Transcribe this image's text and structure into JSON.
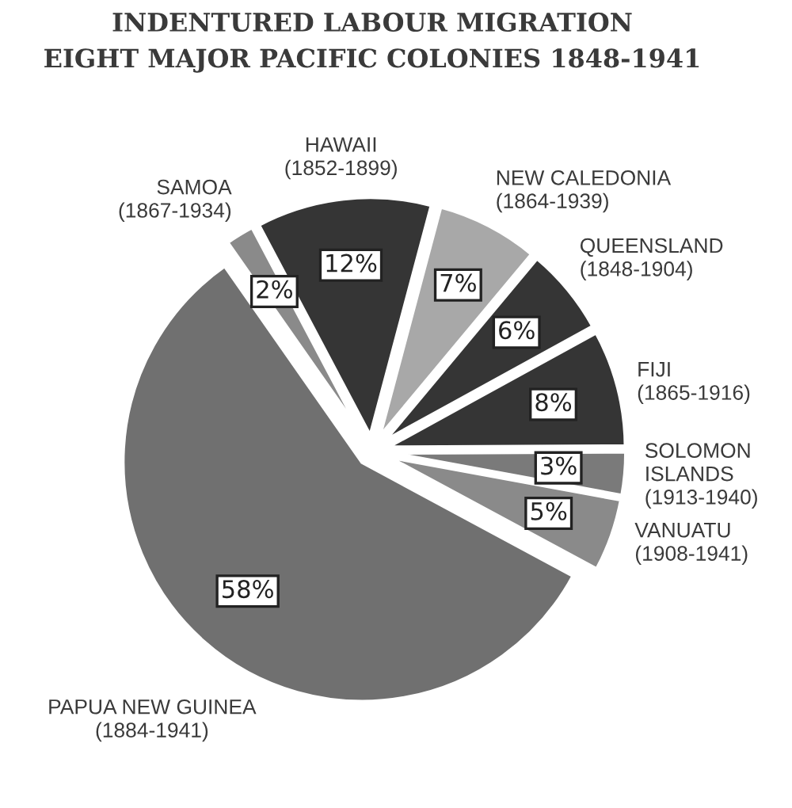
{
  "chart_data": {
    "type": "pie",
    "title": "INDENTURED LABOUR MIGRATION\nEIGHT MAJOR PACIFIC COLONIES 1848-1941",
    "categories": [
      "SAMOA\n(1867-1934)",
      "HAWAII\n(1852-1899)",
      "NEW CALEDONIA\n(1864-1939)",
      "QUEENSLAND\n(1848-1904)",
      "FIJI\n(1865-1916)",
      "SOLOMON\nISLANDS\n(1913-1940)",
      "VANUATU\n(1908-1941)",
      "PAPUA NEW GUINEA\n(1884-1941)"
    ],
    "values": [
      2,
      12,
      7,
      6,
      8,
      3,
      5,
      58
    ],
    "value_labels": [
      "2%",
      "12%",
      "7%",
      "6%",
      "8%",
      "3%",
      "5%",
      "58%"
    ],
    "colors": [
      "#8a8a8a",
      "#353535",
      "#a8a8a8",
      "#353535",
      "#353535",
      "#7a7a7a",
      "#8a8a8a",
      "#707070"
    ]
  }
}
